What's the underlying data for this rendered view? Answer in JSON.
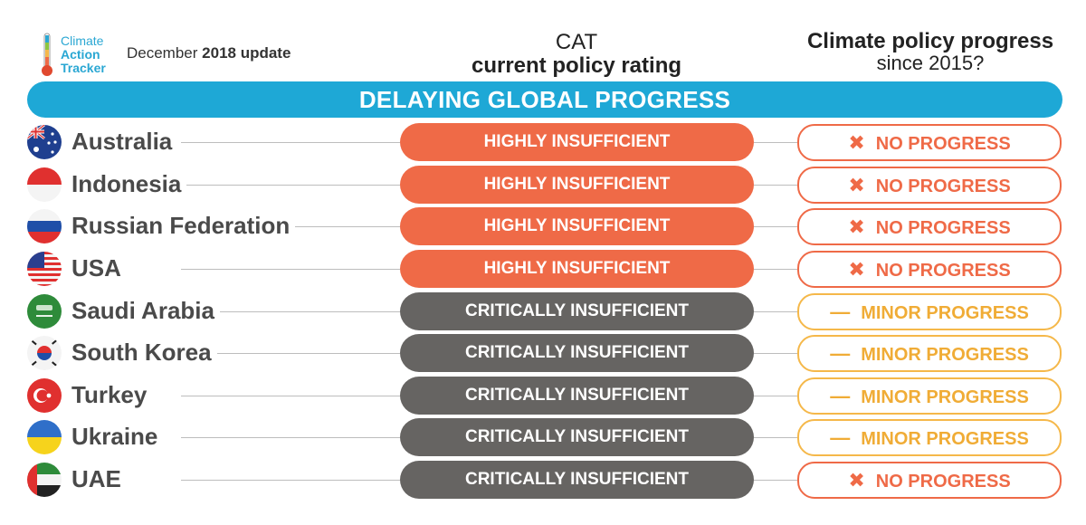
{
  "logo": {
    "line1": "Climate",
    "line2": "Action",
    "line3": "Tracker"
  },
  "update": {
    "prefix": "December",
    "bold": "2018 update"
  },
  "headers": {
    "rating_line1": "CAT",
    "rating_line2": "current policy rating",
    "progress_line1": "Climate policy progress",
    "progress_line2": "since 2015?"
  },
  "banner": "DELAYING GLOBAL PROGRESS",
  "colors": {
    "accent": "#1ea8d6",
    "highly": "#ef6a47",
    "critically": "#666462",
    "minor": "#f5b84a"
  },
  "rows": [
    {
      "country": "Australia",
      "rating": "HIGHLY INSUFFICIENT",
      "progress_symbol": "✖",
      "progress": "NO PROGRESS"
    },
    {
      "country": "Indonesia",
      "rating": "HIGHLY INSUFFICIENT",
      "progress_symbol": "✖",
      "progress": "NO PROGRESS"
    },
    {
      "country": "Russian Federation",
      "rating": "HIGHLY INSUFFICIENT",
      "progress_symbol": "✖",
      "progress": "NO PROGRESS"
    },
    {
      "country": "USA",
      "rating": "HIGHLY INSUFFICIENT",
      "progress_symbol": "✖",
      "progress": "NO PROGRESS"
    },
    {
      "country": "Saudi Arabia",
      "rating": "CRITICALLY INSUFFICIENT",
      "progress_symbol": "—",
      "progress": "MINOR PROGRESS"
    },
    {
      "country": "South Korea",
      "rating": "CRITICALLY INSUFFICIENT",
      "progress_symbol": "—",
      "progress": "MINOR PROGRESS"
    },
    {
      "country": "Turkey",
      "rating": "CRITICALLY INSUFFICIENT",
      "progress_symbol": "—",
      "progress": "MINOR PROGRESS"
    },
    {
      "country": "Ukraine",
      "rating": "CRITICALLY INSUFFICIENT",
      "progress_symbol": "—",
      "progress": "MINOR PROGRESS"
    },
    {
      "country": "UAE",
      "rating": "CRITICALLY INSUFFICIENT",
      "progress_symbol": "✖",
      "progress": "NO PROGRESS"
    }
  ]
}
